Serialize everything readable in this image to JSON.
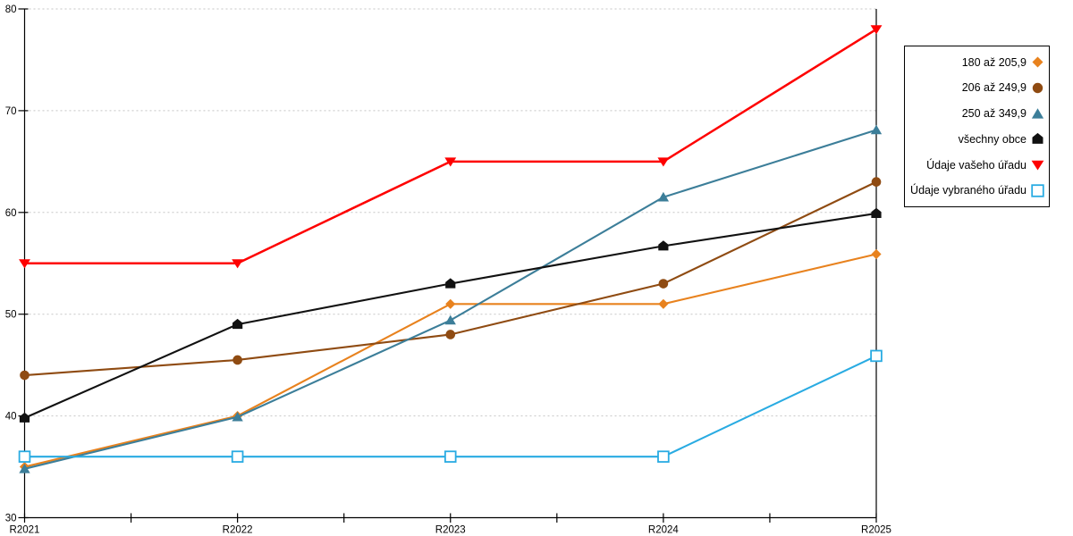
{
  "chart_data": {
    "type": "line",
    "title": "",
    "xlabel": "",
    "ylabel": "",
    "x_categories": [
      "R2021",
      "R2022",
      "R2023",
      "R2024",
      "R2025"
    ],
    "ylim": [
      30,
      80
    ],
    "yticks": [
      30,
      40,
      50,
      60,
      70,
      80
    ],
    "grid": "horizontal dashed gridlines at each y tick",
    "legend_position": "outside-right",
    "axis_color": "#000000",
    "gridline_color": "#c5c5c5",
    "series": [
      {
        "name": "180 až 205,9",
        "marker": "diamond",
        "color": "#E8821E",
        "values": [
          35,
          40,
          51,
          51,
          55.9
        ]
      },
      {
        "name": "206 až 249,9",
        "marker": "circle",
        "color": "#8F4B12",
        "values": [
          44,
          45.5,
          48,
          53,
          63
        ]
      },
      {
        "name": "250 až 349,9",
        "marker": "triangle-up",
        "color": "#3C7E99",
        "values": [
          34.8,
          39.9,
          49.4,
          61.5,
          68.1
        ]
      },
      {
        "name": "všechny obce",
        "marker": "pentagon",
        "color": "#111111",
        "values": [
          39.8,
          49,
          53,
          56.7,
          59.9
        ]
      },
      {
        "name": "Údaje vašeho úřadu",
        "marker": "triangle-down",
        "color": "#FE0000",
        "values": [
          55,
          55,
          65,
          65,
          78
        ]
      },
      {
        "name": "Údaje vybraného úřadu",
        "marker": "square-open",
        "color": "#29ABE2",
        "values": [
          36,
          36,
          36,
          36,
          45.9
        ]
      }
    ]
  }
}
